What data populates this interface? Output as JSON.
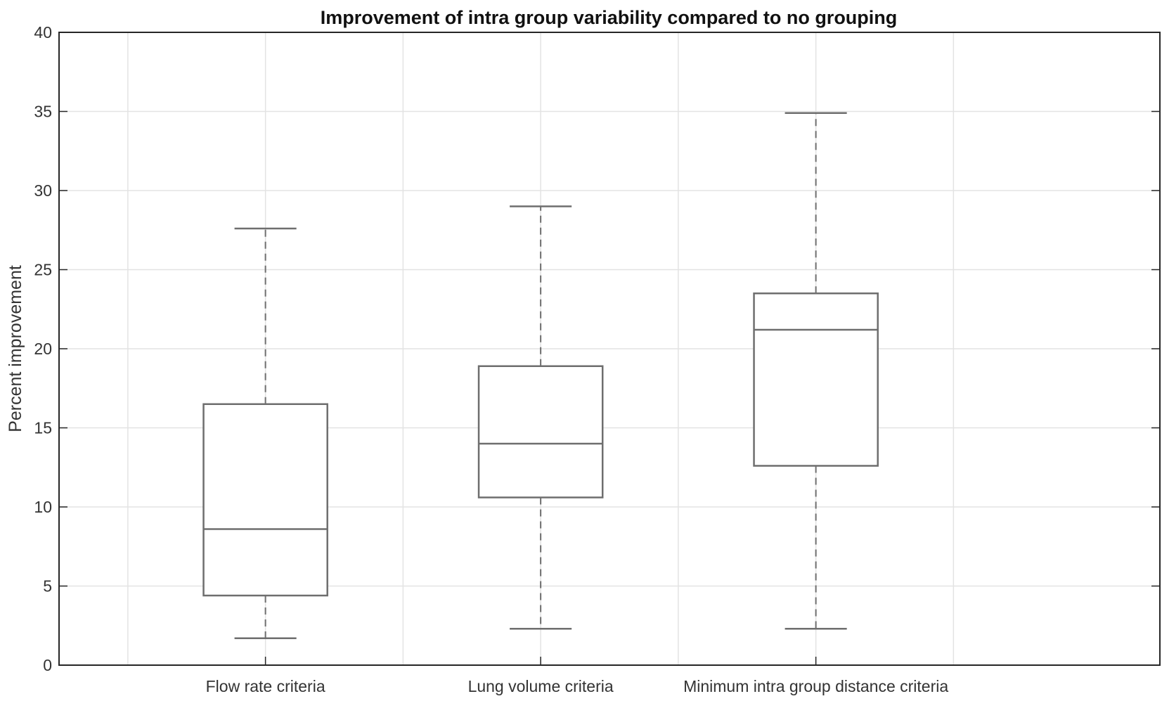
{
  "chart_data": {
    "type": "boxplot",
    "title": "Improvement of intra group variability compared to no grouping",
    "xlabel": "",
    "ylabel": "Percent improvement",
    "ylim": [
      0,
      40
    ],
    "yticks": [
      "0",
      "5",
      "10",
      "15",
      "20",
      "25",
      "30",
      "35",
      "40"
    ],
    "grid": true,
    "categories": [
      "Flow rate criteria",
      "Lung volume criteria",
      "Minimum intra group distance criteria"
    ],
    "boxes": [
      {
        "min": 1.7,
        "q1": 4.4,
        "median": 8.6,
        "q3": 16.5,
        "max": 27.6
      },
      {
        "min": 2.3,
        "q1": 10.6,
        "median": 14.0,
        "q3": 18.9,
        "max": 29.0
      },
      {
        "min": 2.3,
        "q1": 12.6,
        "median": 21.2,
        "q3": 23.5,
        "max": 34.9
      }
    ],
    "colors": {
      "box": "#6e6e6e",
      "grid": "#e3e3e3",
      "axis": "#262626"
    }
  }
}
